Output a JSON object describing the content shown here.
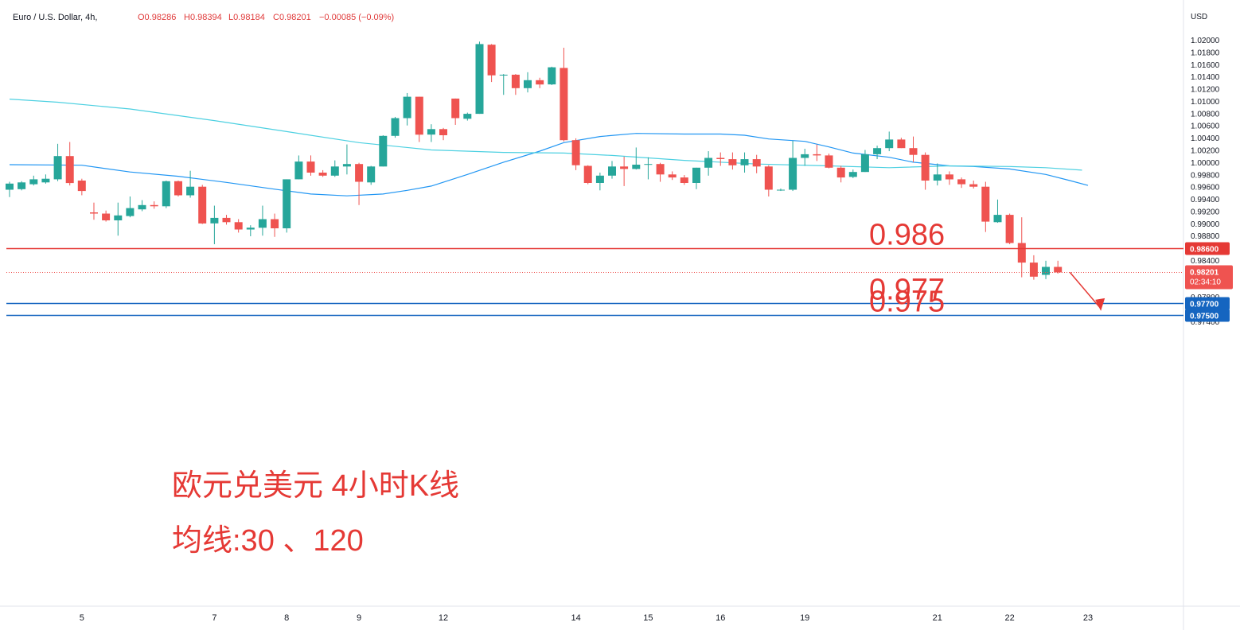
{
  "header": {
    "symbol": "Euro / U.S. Dollar, 4h,",
    "open": "O0.98286",
    "high": "H0.98394",
    "low": "L0.98184",
    "close": "C0.98201",
    "change": "−0.00085 (−0.09%)"
  },
  "axis": {
    "currency": "USD"
  },
  "annotation": {
    "line1": "欧元兑美元 4小时K线",
    "line2": "均线:30 、120"
  },
  "colors": {
    "up": "#26a69a",
    "down": "#ef5350",
    "ma30": "#2196f3",
    "ma120": "#4dd0e1",
    "resistance": "#e53935",
    "support": "#1565c0",
    "text_red": "#e53935"
  },
  "chart_data": {
    "type": "candlestick",
    "title": "Euro / U.S. Dollar, 4h",
    "ylim": [
      0.974,
      1.0215
    ],
    "y_ticks": [
      "1.02000",
      "1.01800",
      "1.01600",
      "1.01400",
      "1.01200",
      "1.01000",
      "1.00800",
      "1.00600",
      "1.00400",
      "1.00200",
      "1.00000",
      "0.99800",
      "0.99600",
      "0.99400",
      "0.99200",
      "0.99000",
      "0.98800",
      "0.98400",
      "0.98000",
      "0.97800",
      "0.97600",
      "0.97400"
    ],
    "x_labels": [
      {
        "label": "5",
        "index": 6
      },
      {
        "label": "7",
        "index": 17
      },
      {
        "label": "8",
        "index": 23
      },
      {
        "label": "9",
        "index": 29
      },
      {
        "label": "12",
        "index": 36
      },
      {
        "label": "14",
        "index": 47
      },
      {
        "label": "15",
        "index": 53
      },
      {
        "label": "16",
        "index": 59
      },
      {
        "label": "19",
        "index": 66
      },
      {
        "label": "21",
        "index": 77
      },
      {
        "label": "22",
        "index": 83
      },
      {
        "label": "23",
        "index": 89.5
      }
    ],
    "candles": [
      [
        0.9955,
        0.9965,
        0.9943,
        0.9968
      ],
      [
        0.9956,
        0.9967,
        0.9954,
        0.9969
      ],
      [
        0.9964,
        0.9972,
        0.9962,
        0.9978
      ],
      [
        0.9967,
        0.9973,
        0.9965,
        0.998
      ],
      [
        0.9972,
        1.001,
        0.9969,
        1.003
      ],
      [
        1.001,
        0.9966,
        0.9962,
        1.0033
      ],
      [
        0.997,
        0.9953,
        0.9946,
        0.9973
      ],
      [
        0.9918,
        0.9916,
        0.9906,
        0.9934
      ],
      [
        0.9916,
        0.9905,
        0.9903,
        0.9921
      ],
      [
        0.9905,
        0.9913,
        0.988,
        0.9934
      ],
      [
        0.9912,
        0.9925,
        0.991,
        0.9944
      ],
      [
        0.9923,
        0.993,
        0.992,
        0.9938
      ],
      [
        0.993,
        0.9928,
        0.9924,
        0.9936
      ],
      [
        0.9928,
        0.9969,
        0.9925,
        0.997
      ],
      [
        0.9969,
        0.9946,
        0.9944,
        0.997
      ],
      [
        0.9946,
        0.996,
        0.9942,
        0.9986
      ],
      [
        0.996,
        0.99,
        0.9899,
        0.9963
      ],
      [
        0.99,
        0.9909,
        0.9866,
        0.9929
      ],
      [
        0.9909,
        0.9902,
        0.9898,
        0.9914
      ],
      [
        0.9902,
        0.989,
        0.9885,
        0.9907
      ],
      [
        0.989,
        0.9893,
        0.9879,
        0.9897
      ],
      [
        0.9893,
        0.9907,
        0.988,
        0.9929
      ],
      [
        0.9907,
        0.9892,
        0.9878,
        0.9916
      ],
      [
        0.9892,
        0.9972,
        0.9885,
        0.9972
      ],
      [
        0.9972,
        1.0001,
        0.9972,
        1.0011
      ],
      [
        1.0001,
        0.9983,
        0.9978,
        1.0011
      ],
      [
        0.9983,
        0.9978,
        0.9976,
        0.9987
      ],
      [
        0.9978,
        0.9993,
        0.9976,
        1.0003
      ],
      [
        0.9993,
        0.9997,
        0.998,
        1.0029
      ],
      [
        0.9997,
        0.9968,
        0.993,
        0.9999
      ],
      [
        0.9967,
        0.9993,
        0.9963,
        0.9994
      ],
      [
        0.9993,
        1.0043,
        0.9993,
        1.0044
      ],
      [
        1.0043,
        1.0072,
        1.004,
        1.0074
      ],
      [
        1.0072,
        1.0107,
        1.006,
        1.0113
      ],
      [
        1.0107,
        1.0045,
        1.0033,
        1.0107
      ],
      [
        1.0045,
        1.0054,
        1.0033,
        1.0062
      ],
      [
        1.0054,
        1.0044,
        1.0036,
        1.0056
      ],
      [
        1.0104,
        1.0072,
        1.0061,
        1.0104
      ],
      [
        1.0071,
        1.0079,
        1.0068,
        1.0081
      ],
      [
        1.0079,
        1.0193,
        1.0079,
        1.0197
      ],
      [
        1.0192,
        1.0142,
        1.0131,
        1.0193
      ],
      [
        1.0142,
        1.0143,
        1.011,
        1.0144
      ],
      [
        1.0143,
        1.0121,
        1.011,
        1.0144
      ],
      [
        1.0121,
        1.0134,
        1.0114,
        1.0147
      ],
      [
        1.0134,
        1.0127,
        1.0121,
        1.0138
      ],
      [
        1.0127,
        1.0155,
        1.0126,
        1.0156
      ],
      [
        1.0154,
        1.0036,
        1.0034,
        1.0187
      ],
      [
        1.0036,
        0.9995,
        0.9987,
        1.0039
      ],
      [
        0.9994,
        0.9966,
        0.9964,
        0.9995
      ],
      [
        0.9966,
        0.9978,
        0.9954,
        0.9983
      ],
      [
        0.9978,
        0.9993,
        0.9973,
        1.0002
      ],
      [
        0.9993,
        0.9989,
        0.9961,
        1.0009
      ],
      [
        0.9989,
        0.9996,
        0.9988,
        1.0024
      ],
      [
        0.9996,
        0.9997,
        0.9972,
        1.0008
      ],
      [
        0.9997,
        0.998,
        0.9968,
        0.9999
      ],
      [
        0.998,
        0.9975,
        0.9971,
        0.9985
      ],
      [
        0.9975,
        0.9966,
        0.9963,
        0.9979
      ],
      [
        0.9966,
        0.9991,
        0.9956,
        0.9991
      ],
      [
        0.9991,
        1.0007,
        0.9978,
        1.0018
      ],
      [
        1.0007,
        1.0005,
        0.9994,
        1.0016
      ],
      [
        1.0005,
        0.9995,
        0.9988,
        1.0016
      ],
      [
        0.9995,
        1.0005,
        0.9983,
        1.0016
      ],
      [
        1.0005,
        0.9993,
        0.9982,
        1.0012
      ],
      [
        0.9993,
        0.9955,
        0.9944,
        0.9995
      ],
      [
        0.9955,
        0.9955,
        0.9953,
        0.9957
      ],
      [
        0.9955,
        1.0007,
        0.9953,
        1.0035
      ],
      [
        1.0007,
        1.0013,
        0.9994,
        1.0022
      ],
      [
        1.0013,
        1.0011,
        1.0002,
        1.0029
      ],
      [
        1.0011,
        0.9991,
        0.999,
        1.0014
      ],
      [
        0.9991,
        0.9975,
        0.9967,
        0.9994
      ],
      [
        0.9976,
        0.9984,
        0.9974,
        0.9988
      ],
      [
        0.9984,
        1.0013,
        0.9984,
        1.002
      ],
      [
        1.0013,
        1.0023,
        1.0005,
        1.0027
      ],
      [
        1.0023,
        1.0037,
        1.0018,
        1.005
      ],
      [
        1.0037,
        1.0023,
        1.0023,
        1.004
      ],
      [
        1.0023,
        1.0012,
        1.0,
        1.0042
      ],
      [
        1.0012,
        0.997,
        0.9955,
        1.0016
      ],
      [
        0.997,
        0.998,
        0.9962,
        0.9998
      ],
      [
        0.998,
        0.9972,
        0.9963,
        0.9985
      ],
      [
        0.9972,
        0.9964,
        0.9958,
        0.9975
      ],
      [
        0.9964,
        0.996,
        0.9957,
        0.997
      ],
      [
        0.996,
        0.9903,
        0.9886,
        0.9968
      ],
      [
        0.9902,
        0.9914,
        0.9901,
        0.9939
      ],
      [
        0.9914,
        0.9868,
        0.9866,
        0.9916
      ],
      [
        0.9868,
        0.9836,
        0.9812,
        0.991
      ],
      [
        0.9836,
        0.9813,
        0.9808,
        0.9848
      ],
      [
        0.9816,
        0.9829,
        0.9809,
        0.9839
      ],
      [
        0.9829,
        0.982,
        0.9818,
        0.9839
      ]
    ],
    "candle_order": [
      "open",
      "close",
      "low",
      "high"
    ],
    "series": [
      {
        "name": "MA30",
        "color": "#2196f3",
        "points": [
          [
            0,
            0.9996
          ],
          [
            6,
            0.9995
          ],
          [
            10,
            0.9984
          ],
          [
            14,
            0.9977
          ],
          [
            18,
            0.9967
          ],
          [
            22,
            0.9956
          ],
          [
            25,
            0.9948
          ],
          [
            28,
            0.9945
          ],
          [
            31,
            0.9948
          ],
          [
            33,
            0.9954
          ],
          [
            35,
            0.9961
          ],
          [
            38,
            0.998
          ],
          [
            41,
            1.0
          ],
          [
            44,
            1.0018
          ],
          [
            46,
            1.0032
          ],
          [
            49,
            1.0042
          ],
          [
            52,
            1.0047
          ],
          [
            56,
            1.0046
          ],
          [
            59,
            1.0046
          ],
          [
            61,
            1.0044
          ],
          [
            63,
            1.0038
          ],
          [
            66,
            1.0034
          ],
          [
            68,
            1.0025
          ],
          [
            70,
            1.0015
          ],
          [
            73,
            1.0008
          ],
          [
            75,
            1.0
          ],
          [
            78,
            0.9994
          ],
          [
            80,
            0.9993
          ],
          [
            83,
            0.9989
          ],
          [
            86,
            0.998
          ],
          [
            88,
            0.997
          ],
          [
            89.5,
            0.9962
          ]
        ]
      },
      {
        "name": "MA120",
        "color": "#4dd0e1",
        "points": [
          [
            0,
            1.0103
          ],
          [
            4,
            1.0098
          ],
          [
            10,
            1.0087
          ],
          [
            17,
            1.0068
          ],
          [
            23,
            1.005
          ],
          [
            29,
            1.0032
          ],
          [
            35,
            1.002
          ],
          [
            41,
            1.0016
          ],
          [
            46,
            1.0015
          ],
          [
            50,
            1.0011
          ],
          [
            56,
            1.0003
          ],
          [
            62,
            0.9997
          ],
          [
            68,
            0.9994
          ],
          [
            73,
            0.9991
          ],
          [
            78,
            0.9994
          ],
          [
            83,
            0.9993
          ],
          [
            86,
            0.9991
          ],
          [
            89,
            0.9987
          ]
        ]
      }
    ],
    "levels": [
      {
        "label": "0.986",
        "value": 0.986,
        "badge": "0.98600",
        "color": "#e53935"
      },
      {
        "label": "0.977",
        "value": 0.977,
        "badge": "0.97700",
        "color": "#1565c0"
      },
      {
        "label": "0.975",
        "value": 0.975,
        "badge": "0.97500",
        "color": "#1565c0"
      }
    ],
    "last_price": {
      "value": 0.98201,
      "badge": "0.98201",
      "countdown": "02:34:10",
      "color": "#ef5350"
    },
    "arrow": {
      "from_index": 88,
      "from_value": 0.982,
      "to_index": 90.5,
      "to_value": 0.9757
    }
  }
}
